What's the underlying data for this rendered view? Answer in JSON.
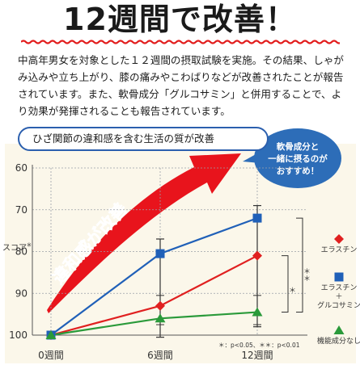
{
  "headline": "12週間で改善！",
  "intro": "中高年男女を対象とした１２週間の摂取試験を実施。その結果、しゃがみ込みや立ち上がり、膝の痛みやこわばりなどが改善されたことが報告されています。また、軟骨成分「グルコサミン」と併用することで、より効果が発揮されることも報告されています。",
  "callout": [
    "軟骨成分と",
    "一緒に摂るのが",
    "おすすめ！"
  ],
  "arrow_text": "違和感が改善",
  "colors": {
    "series1": "#e02020",
    "series2": "#2060b8",
    "series3": "#2a9a3a",
    "arrow": "#e8141c",
    "callout": "#2d6db8"
  },
  "chart_data": {
    "type": "line",
    "title": "ひざ関節の違和感を含む生活の質が改善",
    "ylabel": "スコア",
    "ylabel_mark": "※",
    "x": [
      "0週間",
      "6週間",
      "12週間"
    ],
    "yticks": [
      "60",
      "70",
      "80",
      "90",
      "100"
    ],
    "ylim": [
      100,
      60
    ],
    "series": [
      {
        "name": "エラスチン",
        "values": [
          100,
          93,
          81
        ]
      },
      {
        "name": "エラスチン＋グルコサミン",
        "values": [
          100,
          80.5,
          72
        ],
        "label_lines": [
          "エラスチン",
          "＋",
          "グルコサミン"
        ]
      },
      {
        "name": "機能成分なし",
        "values": [
          100,
          96,
          94.5
        ]
      }
    ],
    "error_bars": [
      {
        "x": "6週間",
        "low": 77,
        "high": 100.5
      },
      {
        "x": "12週間",
        "low": 69,
        "high": 98
      }
    ],
    "significance": [
      "＊",
      "＊＊"
    ],
    "note": "＊：p<0.05、＊＊：p<0.01"
  }
}
